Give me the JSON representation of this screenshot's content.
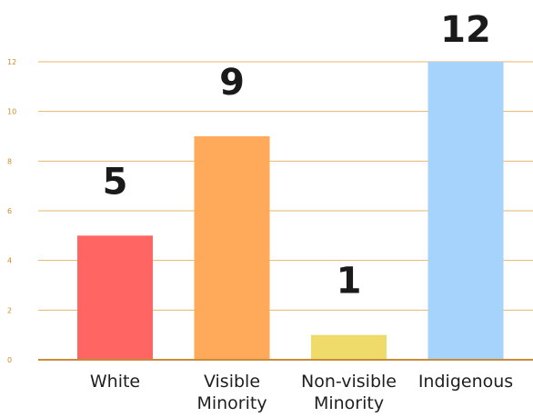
{
  "chart_data": {
    "type": "bar",
    "title": "",
    "xlabel": "",
    "ylabel": "",
    "categories": [
      [
        "White"
      ],
      [
        "Visible",
        "Minority"
      ],
      [
        "Non-visible",
        "Minority"
      ],
      [
        "Indigenous"
      ]
    ],
    "values": [
      5,
      9,
      1,
      12
    ],
    "value_labels": [
      "5",
      "9",
      "1",
      "12"
    ],
    "colors": [
      "#ff6663",
      "#ffaa5b",
      "#eedb6a",
      "#a6d3fb"
    ],
    "ylim": [
      0,
      12
    ],
    "yticks": [
      0,
      2,
      4,
      6,
      8,
      10,
      12
    ],
    "ytick_labels": [
      "0",
      "2",
      "4",
      "6",
      "8",
      "10",
      "12"
    ],
    "grid": true,
    "legend": "none"
  }
}
